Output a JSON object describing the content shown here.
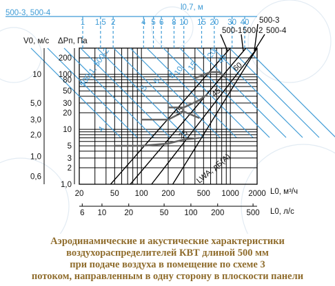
{
  "chart_data": {
    "type": "line",
    "scale": "log-log",
    "x_axis_top_label": "500-3, 500-4",
    "throw_axis_label": "l0,7, м",
    "throw_ticks": [
      "1",
      "1,5",
      "2",
      "4",
      "5",
      "6",
      "8",
      "10",
      "15",
      "20",
      "30",
      "40"
    ],
    "throw_tick_values": [
      1,
      1.5,
      2,
      4,
      5,
      6,
      8,
      10,
      15,
      20,
      30,
      40
    ],
    "y_axis_label_velocity": "V0, м/с",
    "y_axis_label_pressure": "ΔPп, Па",
    "y_ticks_pressure": [
      "200",
      "100",
      "80",
      "50",
      "30",
      "20",
      "10",
      "5",
      "3",
      "2",
      "1,0"
    ],
    "y_tick_values": [
      200,
      100,
      80,
      50,
      30,
      20,
      10,
      5,
      3,
      2,
      1
    ],
    "y_ticks_velocity": [
      "10",
      "5,0",
      "3,0",
      "2,0",
      "1,0",
      "0,6"
    ],
    "y_velocity_values": [
      10,
      5,
      3,
      2,
      1,
      0.6
    ],
    "x_axis_label_airflow": "L0, м³/ч",
    "x_ticks_airflow": [
      "20",
      "50",
      "100",
      "200",
      "500",
      "1000",
      "2000"
    ],
    "x_tick_values": [
      20,
      50,
      100,
      200,
      500,
      1000,
      2000
    ],
    "x_axis_label_ls": "L0, л/с",
    "x_ticks_ls": [
      "6",
      "10",
      "20",
      "50",
      "100",
      "200",
      "500"
    ],
    "x_ls_values": [
      6,
      10,
      20,
      50,
      100,
      200,
      500
    ],
    "xlim": [
      20,
      2000
    ],
    "ylim": [
      1,
      300
    ],
    "series": [
      {
        "name": "500-1",
        "x": [
          45,
          1000
        ],
        "y": [
          1,
          300
        ]
      },
      {
        "name": "500-2",
        "x": [
          75,
          1500
        ],
        "y": [
          1,
          300
        ]
      },
      {
        "name": "500-3",
        "x": [
          130,
          2000
        ],
        "y": [
          1,
          300
        ]
      },
      {
        "name": "500-4",
        "x": [
          225,
          2000
        ],
        "y": [
          1,
          300
        ]
      }
    ],
    "blue_labels": [
      "500-1, 500-2",
      "4",
      "5",
      "6",
      "8",
      "10",
      "15",
      "20",
      "40"
    ],
    "noise_label": "LWA, дБ(А)",
    "noise_values": [
      "25",
      "35",
      "45",
      "60"
    ],
    "noise_curves": [
      {
        "label": "25",
        "x": [
          50,
          100,
          200,
          300,
          450
        ],
        "y": [
          5,
          5,
          5.5,
          6.5,
          7
        ]
      },
      {
        "label": "35",
        "x": [
          100,
          200,
          300,
          450
        ],
        "y": [
          15,
          15,
          21,
          16
        ]
      },
      {
        "label": "45",
        "x": [
          200,
          300,
          450,
          550
        ],
        "y": [
          25,
          25,
          34,
          43
        ]
      },
      {
        "label": "60",
        "x": [
          400,
          600,
          750,
          900
        ],
        "y": [
          85,
          110,
          110,
          85
        ]
      }
    ]
  },
  "caption": [
    "Аэродинамические и акустические характеристики",
    "воздухораспределителей КВТ длиной 500 мм",
    "при подаче воздуха в помещение по схеме 3",
    "потоком, направленным в одну сторону в плоскости панели"
  ],
  "colors": {
    "caption": "#8f6c2c",
    "blue": "#3e9bd6",
    "gray": "#666666",
    "grid": "#000000"
  }
}
